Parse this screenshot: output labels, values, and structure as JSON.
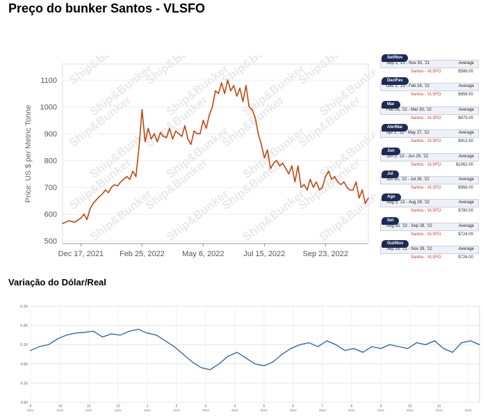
{
  "titles": {
    "bunker": "Preço do bunker Santos - VLSFO",
    "fx": "Variação do Dólar/Real"
  },
  "colors": {
    "bunker_line": "#c1440e",
    "fx_line": "#3a66a8",
    "pill_bg": "#1c2a55",
    "port_text": "#c0392b"
  },
  "watermark": "Ship&Bunker",
  "price_table": {
    "average_label": "Average",
    "rows": [
      {
        "label": "Set/Nov",
        "range": "Sep 1, '21 - Nov 30, '21",
        "port": "Santos - VLSFO",
        "price": "$588.00"
      },
      {
        "label": "Dez/Fev",
        "range": "Dec 1, '21 - Feb 24, '22",
        "port": "Santos - VLSFO",
        "price": "$658.50"
      },
      {
        "label": "Mar",
        "range": "Feb 26, '22 - Mar 30, '22",
        "port": "Santos - VLSFO",
        "price": "$875.00"
      },
      {
        "label": "Abr/Mai",
        "range": "Apr 1, '22 - May 27, '22",
        "port": "Santos - VLSFO",
        "price": "$913.50"
      },
      {
        "label": "Jun",
        "range": "Jun 2, '22 - Jun 29, '22",
        "port": "Santos - VLSFO",
        "price": "$1062.00"
      },
      {
        "label": "Jul",
        "range": "Jun 30, '22 - Jul 28, '22",
        "port": "Santos - VLSFO",
        "price": "$956.00"
      },
      {
        "label": "Ago",
        "range": "Aug 1, '22 - Aug 29, '22",
        "port": "Santos - VLSFO",
        "price": "$780.00"
      },
      {
        "label": "Set",
        "range": "Aug 30, '22 - Sep 28, '22",
        "port": "Santos - VLSFO",
        "price": "$724.00"
      },
      {
        "label": "Out/Nov",
        "range": "Sep 29, '22 - Nov 28, '22",
        "port": "Santos - VLSFO",
        "price": "$726.00"
      }
    ]
  },
  "chart_data": [
    {
      "type": "line",
      "title": "",
      "xlabel": "",
      "ylabel": "Price: US $ per Metric Tonne",
      "ylim": [
        490,
        1160
      ],
      "xlim": [
        0,
        1
      ],
      "yticks": [
        500,
        600,
        700,
        800,
        900,
        1000,
        1100
      ],
      "xticks": [
        {
          "label": "Dec 17, 2021",
          "x": 0.06
        },
        {
          "label": "Feb 25, 2022",
          "x": 0.26
        },
        {
          "label": "May 6, 2022",
          "x": 0.46
        },
        {
          "label": "Jul 15, 2022",
          "x": 0.66
        },
        {
          "label": "Sep 23, 2022",
          "x": 0.86
        }
      ],
      "grid": true,
      "series": [
        {
          "x": [
            0.0,
            0.02,
            0.04,
            0.06,
            0.07,
            0.08,
            0.09,
            0.1,
            0.12,
            0.13,
            0.14,
            0.15,
            0.16,
            0.17,
            0.18,
            0.19,
            0.2,
            0.21,
            0.22,
            0.23,
            0.24,
            0.25,
            0.26,
            0.27,
            0.28,
            0.29,
            0.3,
            0.31,
            0.32,
            0.33,
            0.34,
            0.35,
            0.36,
            0.37,
            0.38,
            0.39,
            0.4,
            0.41,
            0.42,
            0.43,
            0.44,
            0.45,
            0.46,
            0.47,
            0.48,
            0.49,
            0.5,
            0.51,
            0.52,
            0.53,
            0.54,
            0.55,
            0.56,
            0.57,
            0.58,
            0.59,
            0.6,
            0.61,
            0.62,
            0.63,
            0.64,
            0.65,
            0.66,
            0.67,
            0.68,
            0.69,
            0.7,
            0.71,
            0.72,
            0.73,
            0.74,
            0.75,
            0.76,
            0.77,
            0.78,
            0.79,
            0.8,
            0.81,
            0.82,
            0.83,
            0.84,
            0.85,
            0.86,
            0.87,
            0.88,
            0.89,
            0.9,
            0.91,
            0.92,
            0.93,
            0.94,
            0.95,
            0.96,
            0.97,
            0.98,
            0.99,
            1.0
          ],
          "y": [
            565,
            575,
            570,
            585,
            600,
            580,
            620,
            640,
            665,
            675,
            690,
            680,
            700,
            710,
            705,
            720,
            730,
            740,
            730,
            760,
            740,
            850,
            990,
            870,
            920,
            880,
            900,
            870,
            905,
            890,
            885,
            920,
            880,
            910,
            900,
            890,
            930,
            880,
            860,
            910,
            900,
            900,
            950,
            920,
            970,
            1000,
            1060,
            1050,
            1090,
            1050,
            1100,
            1060,
            1080,
            1040,
            1070,
            1020,
            1080,
            1000,
            990,
            960,
            900,
            860,
            810,
            840,
            770,
            790,
            800,
            780,
            790,
            770,
            750,
            780,
            720,
            780,
            700,
            710,
            690,
            730,
            700,
            720,
            690,
            700,
            740,
            760,
            730,
            740,
            720,
            710,
            720,
            700,
            690,
            690,
            720,
            660,
            690,
            640,
            660
          ]
        }
      ]
    },
    {
      "type": "line",
      "title": "",
      "xlabel": "",
      "ylabel": "",
      "ylim": [
        3.8,
        6.3
      ],
      "xlim": [
        0,
        1
      ],
      "yticks": [
        "3.80",
        "4.30",
        "4.80",
        "5.30",
        "5.80",
        "6.30"
      ],
      "xticks": [
        {
          "label": "9",
          "sub": "2021",
          "x": 0.0
        },
        {
          "label": "10",
          "sub": "2021",
          "x": 0.066
        },
        {
          "label": "11",
          "sub": "2021",
          "x": 0.13
        },
        {
          "label": "12",
          "sub": "2021",
          "x": 0.195
        },
        {
          "label": "1",
          "sub": "2022",
          "x": 0.26
        },
        {
          "label": "2",
          "sub": "2022",
          "x": 0.325
        },
        {
          "label": "3",
          "sub": "2022",
          "x": 0.39
        },
        {
          "label": "4",
          "sub": "2022",
          "x": 0.455
        },
        {
          "label": "5",
          "sub": "2022",
          "x": 0.52
        },
        {
          "label": "6",
          "sub": "2022",
          "x": 0.585
        },
        {
          "label": "7",
          "sub": "2022",
          "x": 0.65
        },
        {
          "label": "8",
          "sub": "2022",
          "x": 0.715
        },
        {
          "label": "9",
          "sub": "2022",
          "x": 0.78
        },
        {
          "label": "10",
          "sub": "2022",
          "x": 0.845
        },
        {
          "label": "11",
          "sub": "2022",
          "x": 0.91
        },
        {
          "label": "",
          "sub": "2022",
          "x": 0.975
        }
      ],
      "grid": true,
      "series": [
        {
          "x": [
            0.0,
            0.02,
            0.04,
            0.06,
            0.08,
            0.1,
            0.12,
            0.14,
            0.16,
            0.18,
            0.2,
            0.22,
            0.24,
            0.26,
            0.28,
            0.3,
            0.32,
            0.34,
            0.36,
            0.38,
            0.4,
            0.42,
            0.44,
            0.46,
            0.48,
            0.5,
            0.52,
            0.54,
            0.56,
            0.58,
            0.6,
            0.62,
            0.64,
            0.66,
            0.68,
            0.7,
            0.72,
            0.74,
            0.76,
            0.78,
            0.8,
            0.82,
            0.84,
            0.86,
            0.88,
            0.9,
            0.92,
            0.94,
            0.96,
            0.98,
            1.0
          ],
          "y": [
            5.15,
            5.25,
            5.3,
            5.45,
            5.55,
            5.6,
            5.62,
            5.65,
            5.5,
            5.58,
            5.55,
            5.65,
            5.7,
            5.6,
            5.55,
            5.4,
            5.25,
            5.05,
            4.85,
            4.7,
            4.65,
            4.8,
            5.0,
            5.1,
            4.95,
            4.8,
            4.75,
            4.85,
            5.05,
            5.2,
            5.3,
            5.35,
            5.25,
            5.4,
            5.3,
            5.15,
            5.2,
            5.1,
            5.25,
            5.2,
            5.3,
            5.25,
            5.2,
            5.35,
            5.3,
            5.4,
            5.2,
            5.1,
            5.35,
            5.4,
            5.3
          ]
        }
      ]
    }
  ]
}
